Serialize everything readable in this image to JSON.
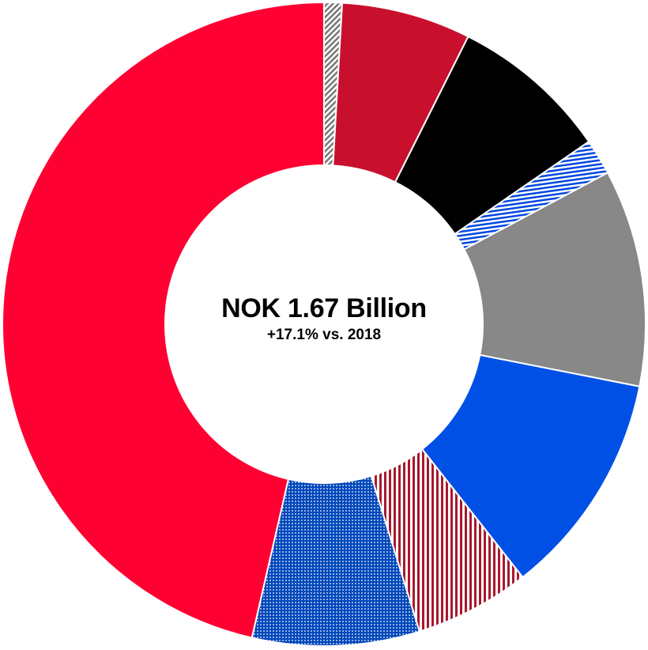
{
  "chart_data": {
    "type": "pie",
    "variant": "donut",
    "center_text": {
      "title": "NOK 1.67 Billion",
      "subtitle": "+17.1% vs. 2018"
    },
    "legend": "none",
    "slices": [
      {
        "value": 0.9,
        "color": "#777777",
        "pattern": "diagonal-stripes"
      },
      {
        "value": 6.5,
        "color": "#C8102E",
        "pattern": "solid"
      },
      {
        "value": 8.0,
        "color": "#000000",
        "pattern": "solid"
      },
      {
        "value": 1.8,
        "color": "#0047E0",
        "pattern": "horizontal-stripes"
      },
      {
        "value": 10.9,
        "color": "#888888",
        "pattern": "solid"
      },
      {
        "value": 11.3,
        "color": "#0050E6",
        "pattern": "solid"
      },
      {
        "value": 5.8,
        "color": "#A6192E",
        "pattern": "vertical-stripes"
      },
      {
        "value": 8.4,
        "color": "#0047BB",
        "pattern": "dots"
      },
      {
        "value": 46.4,
        "color": "#FF0033",
        "pattern": "solid"
      }
    ]
  }
}
